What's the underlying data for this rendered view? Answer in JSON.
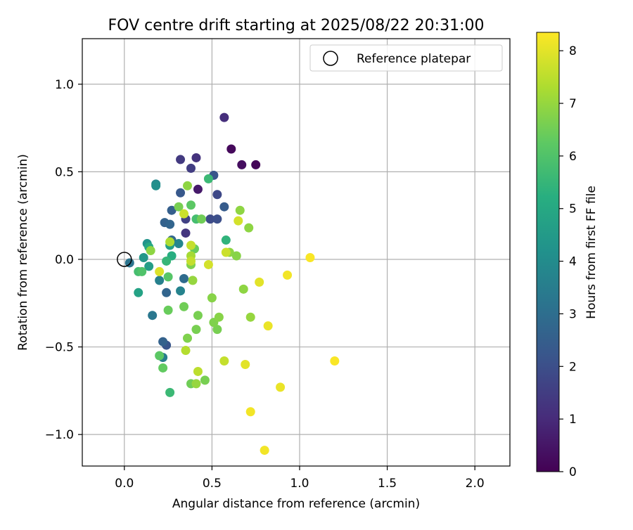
{
  "chart_data": {
    "type": "scatter",
    "title": "FOV centre drift starting at 2025/08/22 20:31:00",
    "xlabel": "Angular distance from reference (arcmin)",
    "ylabel": "Rotation from reference (arcmin)",
    "xlim": [
      -0.24,
      2.2
    ],
    "ylim": [
      -1.18,
      1.26
    ],
    "x_ticks": [
      0.0,
      0.5,
      1.0,
      1.5,
      2.0
    ],
    "x_tick_labels": [
      "0.0",
      "0.5",
      "1.0",
      "1.5",
      "2.0"
    ],
    "y_ticks": [
      -1.0,
      -0.5,
      0.0,
      0.5,
      1.0
    ],
    "y_tick_labels": [
      "−1.0",
      "−0.5",
      "0.0",
      "0.5",
      "1.0"
    ],
    "grid": true,
    "legend": {
      "position": "top-right",
      "entries": [
        {
          "label": "Reference platepar",
          "marker": "hollow-circle"
        }
      ]
    },
    "reference_point": {
      "x": 0.0,
      "y": 0.0
    },
    "colorbar": {
      "label": "Hours from first FF file",
      "colormap": "viridis",
      "range": [
        0,
        8.35
      ],
      "ticks": [
        0,
        1,
        2,
        3,
        4,
        5,
        6,
        7,
        8
      ],
      "tick_labels": [
        "0",
        "1",
        "2",
        "3",
        "4",
        "5",
        "6",
        "7",
        "8"
      ]
    },
    "points": [
      {
        "x": 0.75,
        "y": 0.54,
        "h": 0.1
      },
      {
        "x": 0.61,
        "y": 0.63,
        "h": 0.2
      },
      {
        "x": 0.67,
        "y": 0.54,
        "h": 0.3
      },
      {
        "x": 0.57,
        "y": 0.81,
        "h": 1.1
      },
      {
        "x": 0.42,
        "y": 0.4,
        "h": 0.6
      },
      {
        "x": 0.41,
        "y": 0.58,
        "h": 1.2
      },
      {
        "x": 0.32,
        "y": 0.57,
        "h": 1.4
      },
      {
        "x": 0.38,
        "y": 0.52,
        "h": 1.5
      },
      {
        "x": 0.35,
        "y": 0.15,
        "h": 1.3
      },
      {
        "x": 0.35,
        "y": 0.23,
        "h": 1.6
      },
      {
        "x": 0.53,
        "y": 0.37,
        "h": 1.8
      },
      {
        "x": 0.49,
        "y": 0.23,
        "h": 1.9
      },
      {
        "x": 0.53,
        "y": 0.23,
        "h": 2.0
      },
      {
        "x": 0.51,
        "y": 0.48,
        "h": 2.2
      },
      {
        "x": 0.57,
        "y": 0.3,
        "h": 2.4
      },
      {
        "x": 0.32,
        "y": 0.38,
        "h": 2.3
      },
      {
        "x": 0.27,
        "y": 0.28,
        "h": 2.5
      },
      {
        "x": 0.23,
        "y": 0.21,
        "h": 2.6
      },
      {
        "x": 0.26,
        "y": 0.2,
        "h": 2.7
      },
      {
        "x": 0.27,
        "y": 0.11,
        "h": 2.8
      },
      {
        "x": 0.24,
        "y": -0.49,
        "h": 2.2
      },
      {
        "x": 0.22,
        "y": -0.47,
        "h": 2.6
      },
      {
        "x": 0.24,
        "y": -0.19,
        "h": 2.7
      },
      {
        "x": 0.34,
        "y": -0.11,
        "h": 2.9
      },
      {
        "x": 0.03,
        "y": -0.02,
        "h": 3.2
      },
      {
        "x": 0.16,
        "y": -0.32,
        "h": 3.3
      },
      {
        "x": 0.22,
        "y": -0.56,
        "h": 3.5
      },
      {
        "x": 0.2,
        "y": -0.12,
        "h": 3.6
      },
      {
        "x": 0.32,
        "y": -0.18,
        "h": 3.7
      },
      {
        "x": 0.31,
        "y": 0.09,
        "h": 3.8
      },
      {
        "x": 0.18,
        "y": 0.43,
        "h": 3.9
      },
      {
        "x": 0.18,
        "y": 0.42,
        "h": 4.1
      },
      {
        "x": 0.13,
        "y": 0.09,
        "h": 4.3
      },
      {
        "x": 0.11,
        "y": 0.01,
        "h": 4.4
      },
      {
        "x": 0.14,
        "y": -0.04,
        "h": 4.6
      },
      {
        "x": 0.26,
        "y": 0.08,
        "h": 4.7
      },
      {
        "x": 0.08,
        "y": -0.19,
        "h": 4.8
      },
      {
        "x": 0.14,
        "y": 0.07,
        "h": 5.0
      },
      {
        "x": 0.27,
        "y": 0.02,
        "h": 5.2
      },
      {
        "x": 0.24,
        "y": -0.01,
        "h": 5.5
      },
      {
        "x": 0.58,
        "y": 0.11,
        "h": 5.4
      },
      {
        "x": 0.48,
        "y": 0.46,
        "h": 5.6
      },
      {
        "x": 0.26,
        "y": -0.76,
        "h": 5.6
      },
      {
        "x": 0.41,
        "y": 0.23,
        "h": 5.8
      },
      {
        "x": 0.08,
        "y": -0.07,
        "h": 5.8
      },
      {
        "x": 0.1,
        "y": -0.07,
        "h": 6.0
      },
      {
        "x": 0.25,
        "y": -0.1,
        "h": 6.1
      },
      {
        "x": 0.2,
        "y": -0.55,
        "h": 6.2
      },
      {
        "x": 0.38,
        "y": 0.31,
        "h": 6.2
      },
      {
        "x": 0.22,
        "y": -0.62,
        "h": 6.3
      },
      {
        "x": 0.25,
        "y": -0.29,
        "h": 6.4
      },
      {
        "x": 0.44,
        "y": 0.23,
        "h": 6.5
      },
      {
        "x": 0.4,
        "y": 0.06,
        "h": 6.4
      },
      {
        "x": 0.31,
        "y": 0.3,
        "h": 6.6
      },
      {
        "x": 0.34,
        "y": -0.27,
        "h": 6.5
      },
      {
        "x": 0.38,
        "y": -0.03,
        "h": 6.7
      },
      {
        "x": 0.42,
        "y": -0.32,
        "h": 6.6
      },
      {
        "x": 0.41,
        "y": -0.4,
        "h": 6.6
      },
      {
        "x": 0.36,
        "y": -0.45,
        "h": 6.7
      },
      {
        "x": 0.46,
        "y": -0.69,
        "h": 6.6
      },
      {
        "x": 0.38,
        "y": -0.71,
        "h": 6.5
      },
      {
        "x": 0.53,
        "y": -0.4,
        "h": 6.6
      },
      {
        "x": 0.51,
        "y": -0.36,
        "h": 6.7
      },
      {
        "x": 0.54,
        "y": -0.33,
        "h": 6.8
      },
      {
        "x": 0.5,
        "y": -0.22,
        "h": 6.8
      },
      {
        "x": 0.15,
        "y": 0.05,
        "h": 6.9
      },
      {
        "x": 0.36,
        "y": 0.42,
        "h": 6.9
      },
      {
        "x": 0.66,
        "y": 0.28,
        "h": 6.9
      },
      {
        "x": 0.71,
        "y": 0.18,
        "h": 6.9
      },
      {
        "x": 0.6,
        "y": 0.04,
        "h": 6.9
      },
      {
        "x": 0.64,
        "y": 0.02,
        "h": 6.8
      },
      {
        "x": 0.68,
        "y": -0.17,
        "h": 6.9
      },
      {
        "x": 0.72,
        "y": -0.33,
        "h": 7.0
      },
      {
        "x": 0.39,
        "y": -0.12,
        "h": 7.0
      },
      {
        "x": 0.41,
        "y": -0.71,
        "h": 7.0
      },
      {
        "x": 0.26,
        "y": 0.1,
        "h": 7.3
      },
      {
        "x": 0.38,
        "y": 0.02,
        "h": 7.2
      },
      {
        "x": 0.35,
        "y": -0.52,
        "h": 7.4
      },
      {
        "x": 0.42,
        "y": -0.64,
        "h": 7.5
      },
      {
        "x": 0.57,
        "y": -0.58,
        "h": 7.6
      },
      {
        "x": 0.38,
        "y": 0.08,
        "h": 7.6
      },
      {
        "x": 0.38,
        "y": -0.01,
        "h": 7.6
      },
      {
        "x": 0.34,
        "y": 0.26,
        "h": 7.7
      },
      {
        "x": 0.58,
        "y": 0.04,
        "h": 7.7
      },
      {
        "x": 0.48,
        "y": -0.03,
        "h": 7.8
      },
      {
        "x": 0.65,
        "y": 0.22,
        "h": 7.8
      },
      {
        "x": 0.2,
        "y": -0.07,
        "h": 7.9
      },
      {
        "x": 0.69,
        "y": -0.6,
        "h": 8.0
      },
      {
        "x": 0.77,
        "y": -0.13,
        "h": 8.0
      },
      {
        "x": 0.82,
        "y": -0.38,
        "h": 8.1
      },
      {
        "x": 0.89,
        "y": -0.73,
        "h": 8.1
      },
      {
        "x": 0.72,
        "y": -0.87,
        "h": 8.2
      },
      {
        "x": 0.8,
        "y": -1.09,
        "h": 8.2
      },
      {
        "x": 0.93,
        "y": -0.09,
        "h": 8.2
      },
      {
        "x": 1.06,
        "y": 0.01,
        "h": 8.3
      },
      {
        "x": 1.2,
        "y": -0.58,
        "h": 8.3
      }
    ]
  }
}
